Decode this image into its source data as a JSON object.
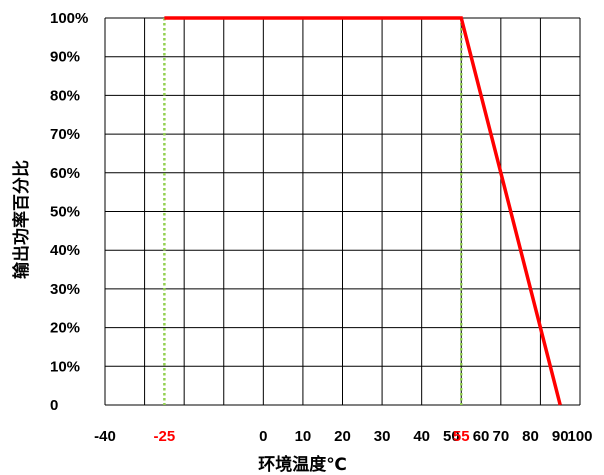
{
  "chart_data": {
    "type": "line",
    "xlabel": "环境温度℃",
    "ylabel": "输出功率百分比",
    "xlim": [
      -40,
      100
    ],
    "ylim": [
      0,
      100
    ],
    "x_ticks": [
      {
        "value": -40,
        "label": "-40",
        "highlight": false
      },
      {
        "value": -25,
        "label": "-25",
        "highlight": true
      },
      {
        "value": 0,
        "label": "0",
        "highlight": false
      },
      {
        "value": 10,
        "label": "10",
        "highlight": false
      },
      {
        "value": 20,
        "label": "20",
        "highlight": false
      },
      {
        "value": 30,
        "label": "30",
        "highlight": false
      },
      {
        "value": 40,
        "label": "40",
        "highlight": false
      },
      {
        "value": 50,
        "label": "50",
        "highlight": false
      },
      {
        "value": 55,
        "label": "55",
        "highlight": true
      },
      {
        "value": 60,
        "label": "60",
        "highlight": false
      },
      {
        "value": 70,
        "label": "70",
        "highlight": false
      },
      {
        "value": 80,
        "label": "80",
        "highlight": false
      },
      {
        "value": 90,
        "label": "90",
        "highlight": false
      },
      {
        "value": 100,
        "label": "100",
        "highlight": false
      }
    ],
    "y_ticks": [
      {
        "value": 0,
        "label": "0"
      },
      {
        "value": 10,
        "label": "10%"
      },
      {
        "value": 20,
        "label": "20%"
      },
      {
        "value": 30,
        "label": "30%"
      },
      {
        "value": 40,
        "label": "40%"
      },
      {
        "value": 50,
        "label": "50%"
      },
      {
        "value": 60,
        "label": "60%"
      },
      {
        "value": 70,
        "label": "70%"
      },
      {
        "value": 80,
        "label": "80%"
      },
      {
        "value": 90,
        "label": "90%"
      },
      {
        "value": 100,
        "label": "100%"
      }
    ],
    "series": [
      {
        "x": [
          -25,
          55,
          90
        ],
        "y": [
          100,
          100,
          0
        ],
        "color": "#ff0000"
      }
    ],
    "reference_lines_x": [
      -25,
      55
    ],
    "reference_line_color": "#92d050",
    "grid": true,
    "colors": {
      "tick_text": "#000000",
      "highlight_text": "#ff0000",
      "grid": "#000000"
    }
  }
}
